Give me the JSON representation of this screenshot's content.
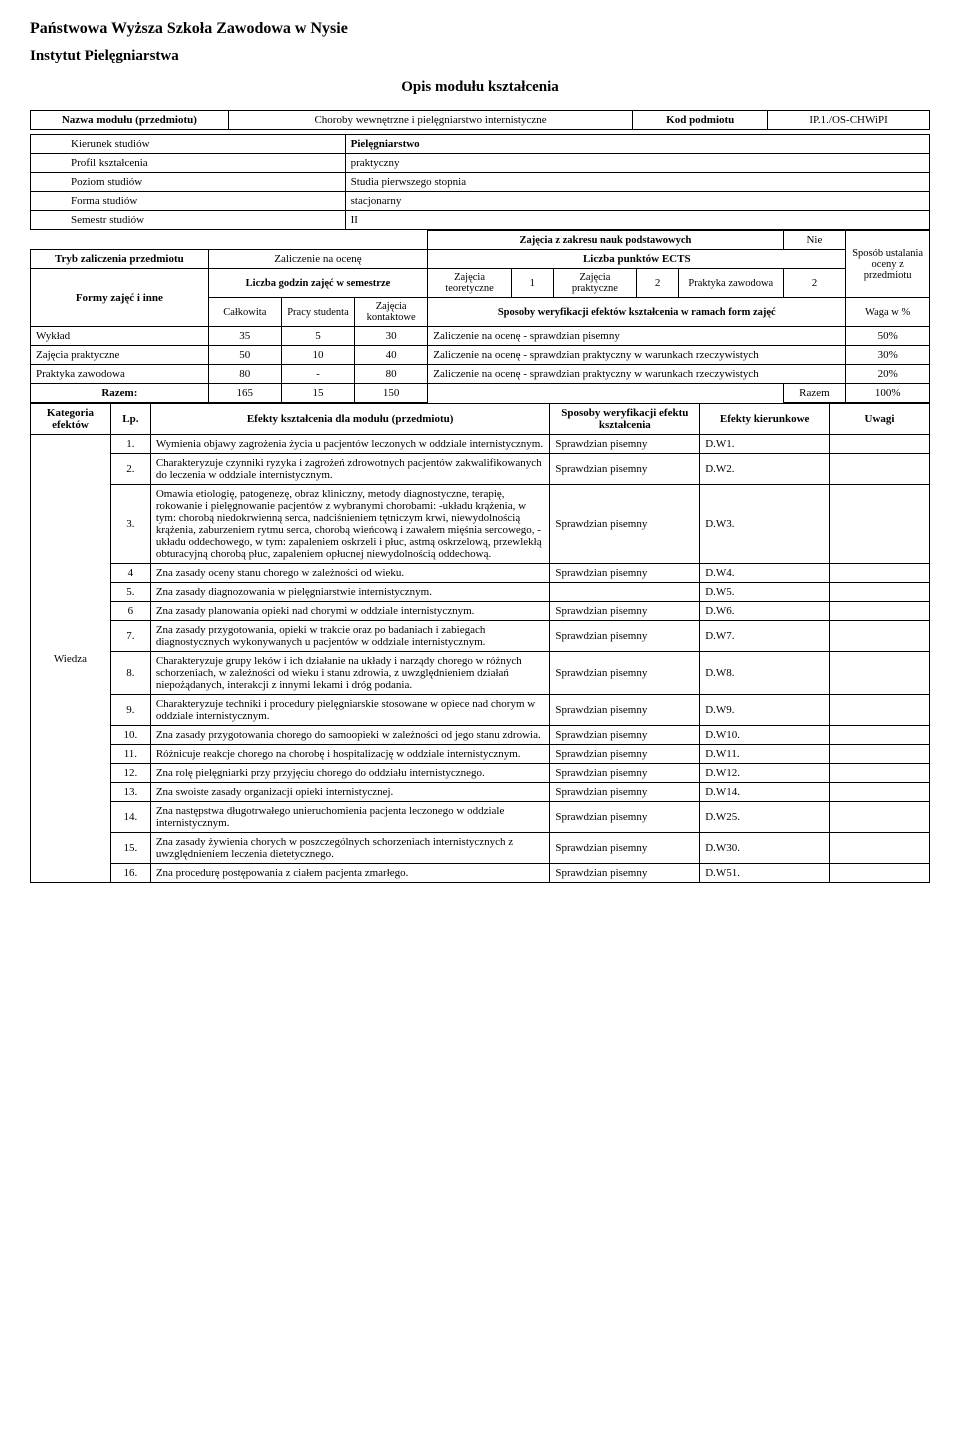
{
  "header": {
    "school": "Państwowa Wyższa Szkoła Zawodowa w Nysie",
    "institute": "Instytut Pielęgniarstwa",
    "title": "Opis modułu kształcenia"
  },
  "module": {
    "name_label": "Nazwa modułu (przedmiotu)",
    "name_value": "Choroby wewnętrzne i pielęgniarstwo internistyczne",
    "code_label": "Kod podmiotu",
    "code_value": "IP.1./OS-CHWiPI"
  },
  "info": {
    "kierunek_label": "Kierunek studiów",
    "kierunek_value": "Pielęgniarstwo",
    "profil_label": "Profil kształcenia",
    "profil_value": "praktyczny",
    "poziom_label": "Poziom studiów",
    "poziom_value": "Studia pierwszego stopnia",
    "forma_label": "Forma studiów",
    "forma_value": "stacjonarny",
    "semestr_label": "Semestr studiów",
    "semestr_value": "II"
  },
  "zakres": {
    "label": "Zajęcia z zakresu nauk podstawowych",
    "value": "Nie"
  },
  "tryb": {
    "label": "Tryb zaliczenia przedmiotu",
    "value": "Zaliczenie na ocenę",
    "ects_label": "Liczba punktów ECTS",
    "sposob": "Sposób ustalania oceny z przedmiotu"
  },
  "formy": {
    "label": "Formy zajęć i inne",
    "godzin_label": "Liczba godzin zajęć w semestrze",
    "calkowita": "Całkowita",
    "pracy": "Pracy studenta",
    "kontaktowe": "Zajęcia kontaktowe",
    "teoretyczne": "Zajęcia teoretyczne",
    "teoretyczne_val": "1",
    "praktyczne_lbl": "Zajęcia praktyczne",
    "praktyczne_val": "2",
    "praktyka_lbl": "Praktyka zawodowa",
    "praktyka_val": "2",
    "sposoby": "Sposoby weryfikacji efektów kształcenia w ramach form zajęć",
    "waga": "Waga w %"
  },
  "rows": {
    "wyklad": {
      "label": "Wykład",
      "c": "35",
      "p": "5",
      "k": "30",
      "desc": "Zaliczenie na ocenę - sprawdzian pisemny",
      "waga": "50%"
    },
    "zajecia": {
      "label": "Zajęcia praktyczne",
      "c": "50",
      "p": "10",
      "k": "40",
      "desc": "Zaliczenie na ocenę - sprawdzian praktyczny w warunkach rzeczywistych",
      "waga": "30%"
    },
    "praktyka": {
      "label": "Praktyka  zawodowa",
      "c": "80",
      "p": "-",
      "k": "80",
      "desc": "Zaliczenie na ocenę - sprawdzian praktyczny w warunkach rzeczywistych",
      "waga": "20%"
    },
    "razem": {
      "label": "Razem:",
      "c": "165",
      "p": "15",
      "k": "150",
      "razem_lbl": "Razem",
      "waga": "100%"
    }
  },
  "effects": {
    "kategoria": "Kategoria efektów",
    "lp": "Lp.",
    "efekty_label": "Efekty kształcenia dla modułu (przedmiotu)",
    "sposoby": "Sposoby weryfikacji efektu kształcenia",
    "kierunkowe": "Efekty kierunkowe",
    "uwagi": "Uwagi",
    "wiedza": "Wiedza",
    "items": [
      {
        "lp": "1.",
        "txt": "Wymienia  objawy zagrożenia życia u pacjentów leczonych w oddziale internistycznym.",
        "sp": "Sprawdzian pisemny",
        "ek": "D.W1."
      },
      {
        "lp": "2.",
        "txt": "Charakteryzuje czynniki ryzyka  i zagrożeń zdrowotnych pacjentów zakwalifikowanych do leczenia w oddziale internistycznym.",
        "sp": "Sprawdzian pisemny",
        "ek": "D.W2."
      },
      {
        "lp": "3.",
        "txt": "Omawia etiologię, patogenezę, obraz kliniczny, metody diagnostyczne, terapię, rokowanie i pielęgnowanie pacjentów z wybranymi chorobami: -układu krążenia, w tym: chorobą niedokrwienną serca, nadciśnieniem tętniczym krwi, niewydolnością krążenia, zaburzeniem rytmu serca, chorobą wieńcową i zawałem mięśnia sercowego, -układu oddechowego, w tym: zapaleniem oskrzeli i płuc, astmą oskrzelową, przewlekłą obturacyjną chorobą płuc, zapaleniem opłucnej niewydolnością oddechową.",
        "sp": "Sprawdzian pisemny",
        "ek": "D.W3."
      },
      {
        "lp": "4",
        "txt": "Zna  zasady oceny stanu chorego w zależności od wieku.",
        "sp": "Sprawdzian pisemny",
        "ek": "D.W4."
      },
      {
        "lp": "5.",
        "txt": "Zna zasady diagnozowania w pielęgniarstwie internistycznym.",
        "sp": "",
        "ek": "D.W5."
      },
      {
        "lp": "6",
        "txt": "Zna zasady planowania opieki nad chorymi w oddziale internistycznym.",
        "sp": "Sprawdzian pisemny",
        "ek": "D.W6."
      },
      {
        "lp": "7.",
        "txt": "Zna zasady przygotowania, opieki w trakcie oraz po badaniach i zabiegach diagnostycznych wykonywanych  u pacjentów w oddziale internistycznym.",
        "sp": "Sprawdzian pisemny",
        "ek": "D.W7."
      },
      {
        "lp": "8.",
        "txt": "Charakteryzuje grupy leków i ich działanie na układy i narządy chorego w różnych schorzeniach, w zależności od wieku i stanu zdrowia, z uwzględnieniem działań niepożądanych, interakcji z innymi lekami i dróg podania.",
        "sp": "Sprawdzian pisemny",
        "ek": "D.W8."
      },
      {
        "lp": "9.",
        "txt": "Charakteryzuje techniki i procedury pielęgniarskie stosowane w opiece  nad chorym w oddziale internistycznym.",
        "sp": "Sprawdzian pisemny",
        "ek": "D.W9."
      },
      {
        "lp": "10.",
        "txt": "Zna zasady przygotowania chorego do samoopieki w zależności od jego  stanu zdrowia.",
        "sp": "Sprawdzian pisemny",
        "ek": "D.W10."
      },
      {
        "lp": "11.",
        "txt": "Różnicuje reakcje chorego na chorobę i hospitalizację w  oddziale internistycznym.",
        "sp": "Sprawdzian pisemny",
        "ek": "D.W11."
      },
      {
        "lp": "12.",
        "txt": "Zna rolę pielęgniarki przy przyjęciu chorego do oddziału  internistycznego.",
        "sp": "Sprawdzian pisemny",
        "ek": "D.W12."
      },
      {
        "lp": "13.",
        "txt": "Zna swoiste zasady organizacji opieki internistycznej.",
        "sp": "Sprawdzian pisemny",
        "ek": "D.W14."
      },
      {
        "lp": "14.",
        "txt": "Zna następstwa długotrwałego unieruchomienia pacjenta leczonego w oddziale internistycznym.",
        "sp": "Sprawdzian pisemny",
        "ek": "D.W25."
      },
      {
        "lp": "15.",
        "txt": "Zna zasady żywienia chorych w poszczególnych schorzeniach internistycznych z uwzględnieniem leczenia dietetycznego.",
        "sp": "Sprawdzian pisemny",
        "ek": "D.W30."
      },
      {
        "lp": "16.",
        "txt": "Zna procedurę postępowania z ciałem pacjenta zmarłego.",
        "sp": "Sprawdzian pisemny",
        "ek": "D.W51."
      }
    ]
  }
}
